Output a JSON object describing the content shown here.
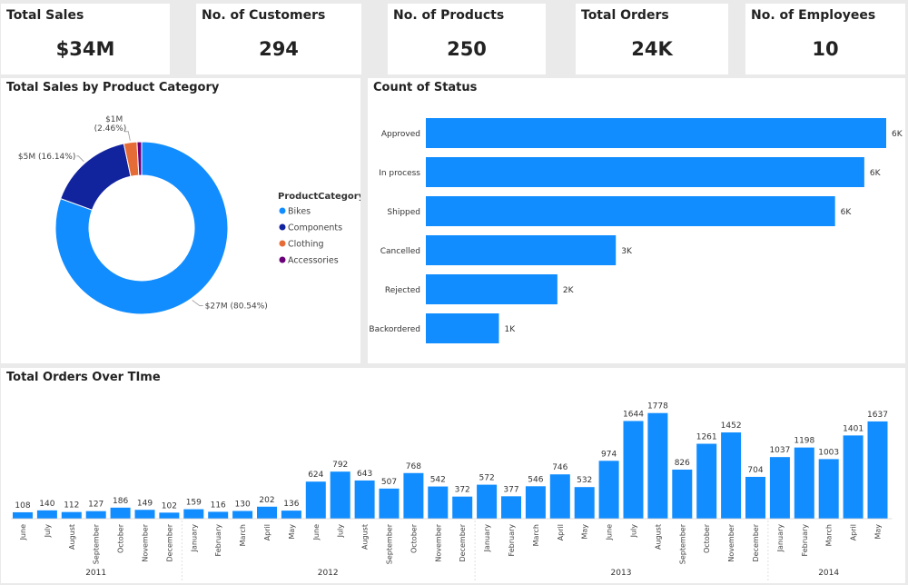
{
  "colors": {
    "primary": "#118dff",
    "components": "#12239e",
    "clothing": "#e66c37",
    "accessories": "#6b007b"
  },
  "kpis": [
    {
      "title": "Total Sales",
      "value": "$34M"
    },
    {
      "title": "No. of Customers",
      "value": "294"
    },
    {
      "title": "No. of Products",
      "value": "250"
    },
    {
      "title": "Total Orders",
      "value": "24K"
    },
    {
      "title": "No. of Employees",
      "value": "10"
    }
  ],
  "chart_data": [
    {
      "type": "pie",
      "title": "Total Sales by Product Category",
      "legend_title": "ProductCategory",
      "legend_position": "right",
      "slices": [
        {
          "name": "Bikes",
          "value": 27,
          "percent": 80.54,
          "label": "$27M (80.54%)"
        },
        {
          "name": "Components",
          "value": 5,
          "percent": 16.14,
          "label": "$5M (16.14%)"
        },
        {
          "name": "Clothing",
          "value": 1,
          "percent": 2.46,
          "label_line1": "$1M",
          "label_line2": "(2.46%)"
        },
        {
          "name": "Accessories",
          "value": 0.3,
          "percent": 0.86
        }
      ]
    },
    {
      "type": "bar",
      "orientation": "horizontal",
      "title": "Count of Status",
      "categories": [
        "Approved",
        "In process",
        "Shipped",
        "Cancelled",
        "Rejected",
        "Backordered"
      ],
      "values": [
        6.3,
        6.0,
        5.6,
        2.6,
        1.8,
        1.0
      ],
      "labels": [
        "6K",
        "6K",
        "6K",
        "3K",
        "2K",
        "1K"
      ]
    },
    {
      "type": "bar",
      "title": "Total Orders Over TIme",
      "categories": [
        "June",
        "July",
        "August",
        "September",
        "October",
        "November",
        "December",
        "January",
        "February",
        "March",
        "April",
        "May",
        "June",
        "July",
        "August",
        "September",
        "October",
        "November",
        "December",
        "January",
        "February",
        "March",
        "April",
        "May",
        "June",
        "July",
        "August",
        "September",
        "October",
        "November",
        "December",
        "January",
        "February",
        "March",
        "April",
        "May"
      ],
      "values": [
        108,
        140,
        112,
        127,
        186,
        149,
        102,
        159,
        116,
        130,
        202,
        136,
        624,
        792,
        643,
        507,
        768,
        542,
        372,
        572,
        377,
        546,
        746,
        532,
        974,
        1644,
        1778,
        826,
        1261,
        1452,
        704,
        1037,
        1198,
        1003,
        1401,
        1637
      ],
      "years": [
        {
          "label": "2011",
          "start": 0,
          "end": 6
        },
        {
          "label": "2012",
          "start": 7,
          "end": 18
        },
        {
          "label": "2013",
          "start": 19,
          "end": 30
        },
        {
          "label": "2014",
          "start": 31,
          "end": 35
        }
      ],
      "ylim": [
        0,
        1850
      ]
    }
  ]
}
